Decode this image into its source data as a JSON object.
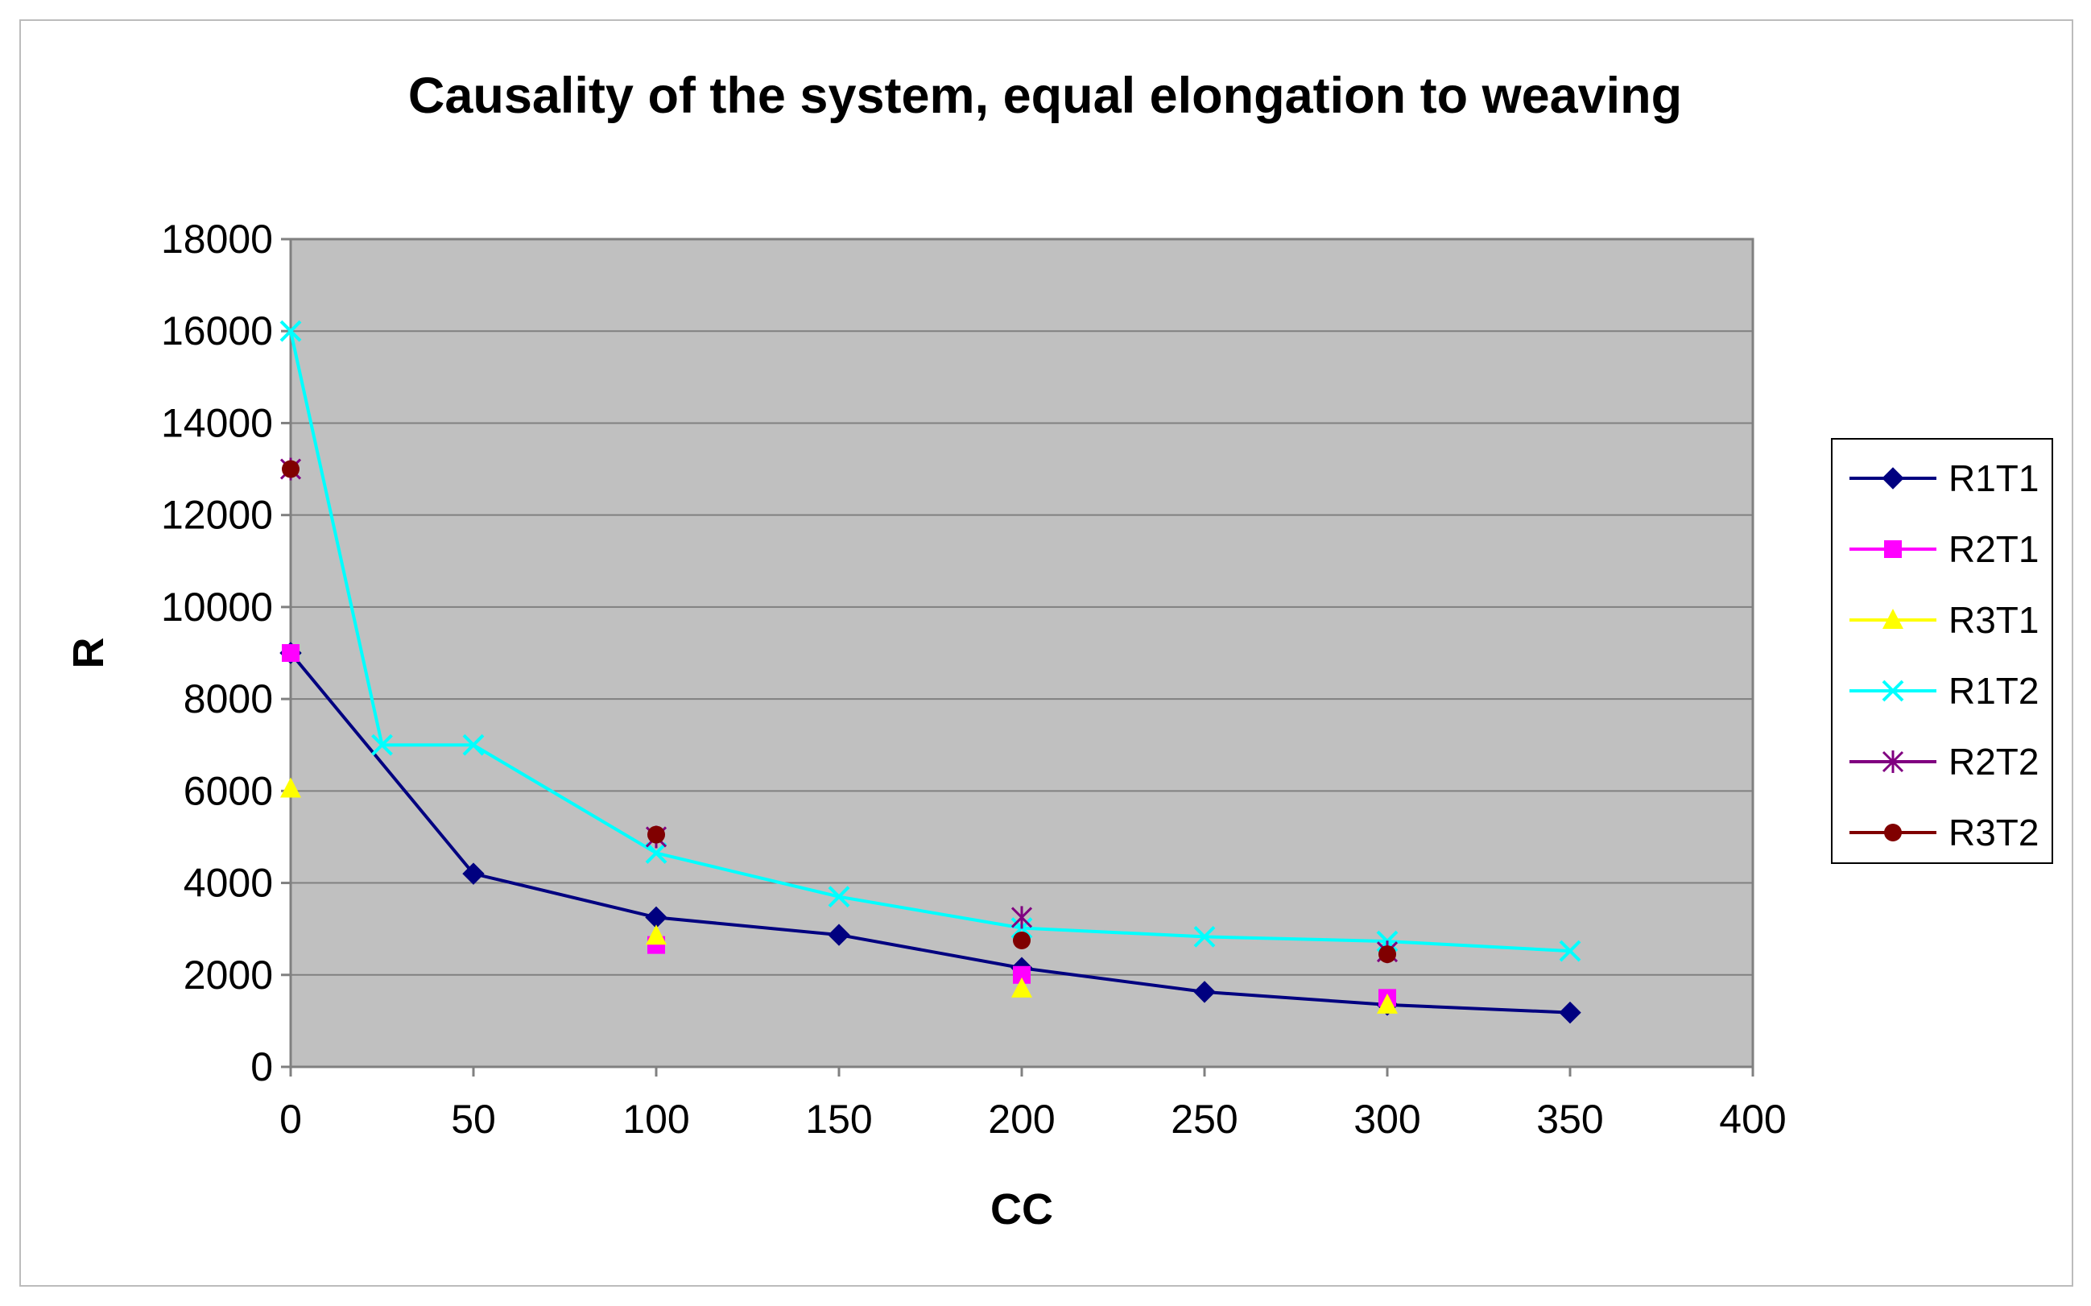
{
  "chart_data": {
    "type": "scatter",
    "title": "Causality of the system, equal elongation to  weaving",
    "xlabel": "CC",
    "ylabel": "R",
    "xlim": [
      0,
      400
    ],
    "ylim": [
      0,
      18000
    ],
    "xticks": [
      "0",
      "50",
      "100",
      "150",
      "200",
      "250",
      "300",
      "350",
      "400"
    ],
    "yticks": [
      "0",
      "2000",
      "4000",
      "6000",
      "8000",
      "10000",
      "12000",
      "14000",
      "16000",
      "18000"
    ],
    "x_tick_values": [
      0,
      50,
      100,
      150,
      200,
      250,
      300,
      350,
      400
    ],
    "y_tick_values": [
      0,
      2000,
      4000,
      6000,
      8000,
      10000,
      12000,
      14000,
      16000,
      18000
    ],
    "grid": "horizontal",
    "plot_background": "#c0c0c0",
    "legend_position": "right",
    "series": [
      {
        "name": "R1T1",
        "color": "#000080",
        "marker": "diamond",
        "line": true,
        "points": [
          [
            0,
            9000
          ],
          [
            50,
            4200
          ],
          [
            100,
            3250
          ],
          [
            150,
            2870
          ],
          [
            200,
            2150
          ],
          [
            250,
            1630
          ],
          [
            300,
            1350
          ],
          [
            350,
            1180
          ]
        ]
      },
      {
        "name": "R2T1",
        "color": "#ff00ff",
        "marker": "square",
        "line": true,
        "points": [
          [
            0,
            9000
          ],
          [
            100,
            2650
          ],
          [
            200,
            2000
          ],
          [
            300,
            1500
          ]
        ]
      },
      {
        "name": "R3T1",
        "color": "#ffff00",
        "marker": "triangle",
        "line": true,
        "points": [
          [
            0,
            6050
          ],
          [
            100,
            2850
          ],
          [
            200,
            1700
          ],
          [
            300,
            1350
          ]
        ]
      },
      {
        "name": "R1T2",
        "color": "#00ffff",
        "marker": "x",
        "line": true,
        "points": [
          [
            0,
            16000
          ],
          [
            25,
            7000
          ],
          [
            50,
            7000
          ],
          [
            100,
            4650
          ],
          [
            150,
            3700
          ],
          [
            200,
            3020
          ],
          [
            250,
            2830
          ],
          [
            300,
            2730
          ],
          [
            350,
            2520
          ]
        ]
      },
      {
        "name": "R2T2",
        "color": "#800080",
        "marker": "star",
        "line": true,
        "points": [
          [
            0,
            13000
          ],
          [
            100,
            5000
          ],
          [
            200,
            3250
          ],
          [
            300,
            2500
          ]
        ]
      },
      {
        "name": "R3T2",
        "color": "#800000",
        "marker": "circle",
        "line": true,
        "points": [
          [
            0,
            13000
          ],
          [
            100,
            5050
          ],
          [
            200,
            2750
          ],
          [
            300,
            2450
          ]
        ]
      }
    ]
  }
}
